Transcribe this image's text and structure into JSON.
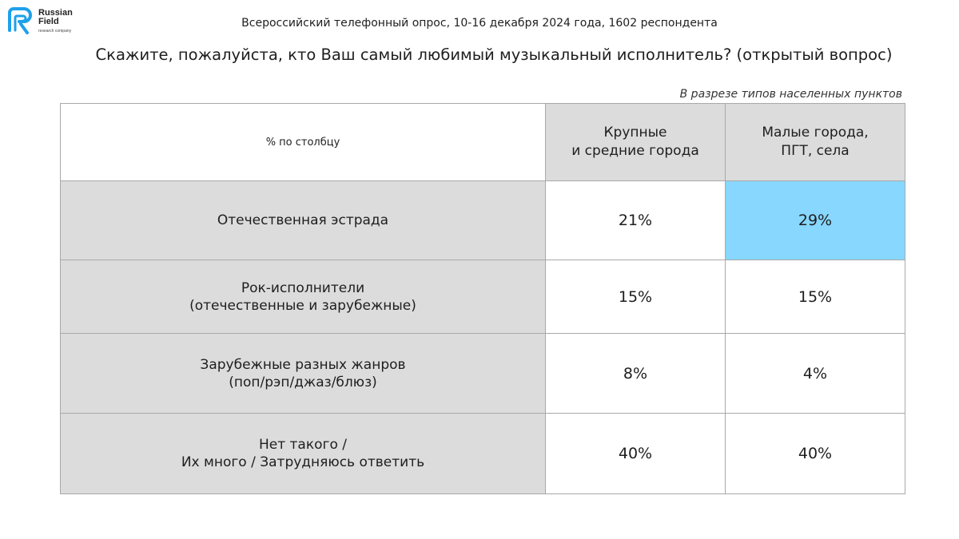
{
  "logo": {
    "name_line1": "Russian",
    "name_line2": "Field",
    "tagline": "research company",
    "brand_color": "#1ea0ea"
  },
  "survey_info": "Всероссийский телефонный опрос, 10-16 декабря 2024 года, 1602 респондента",
  "question": "Скажите, пожалуйста, кто Ваш самый любимый музыкальный исполнитель? (открытый вопрос)",
  "breakdown_note": "В разрезе типов населенных пунктов",
  "table": {
    "corner_label": "% по столбцу",
    "columns": [
      "Крупные\nи средние города",
      "Малые города,\nПГТ, села"
    ],
    "rows": [
      {
        "label": "Отечественная эстрада",
        "values": [
          "21%",
          "29%"
        ]
      },
      {
        "label": "Рок-исполнители\n(отечественные и зарубежные)",
        "values": [
          "15%",
          "15%"
        ]
      },
      {
        "label": "Зарубежные разных жанров\n(поп/рэп/джаз/блюз)",
        "values": [
          "8%",
          "4%"
        ]
      },
      {
        "label": "Нет такого /\nИх много / Затрудняюсь ответить",
        "values": [
          "40%",
          "40%"
        ]
      }
    ],
    "highlight_color": "#87d7ff"
  }
}
